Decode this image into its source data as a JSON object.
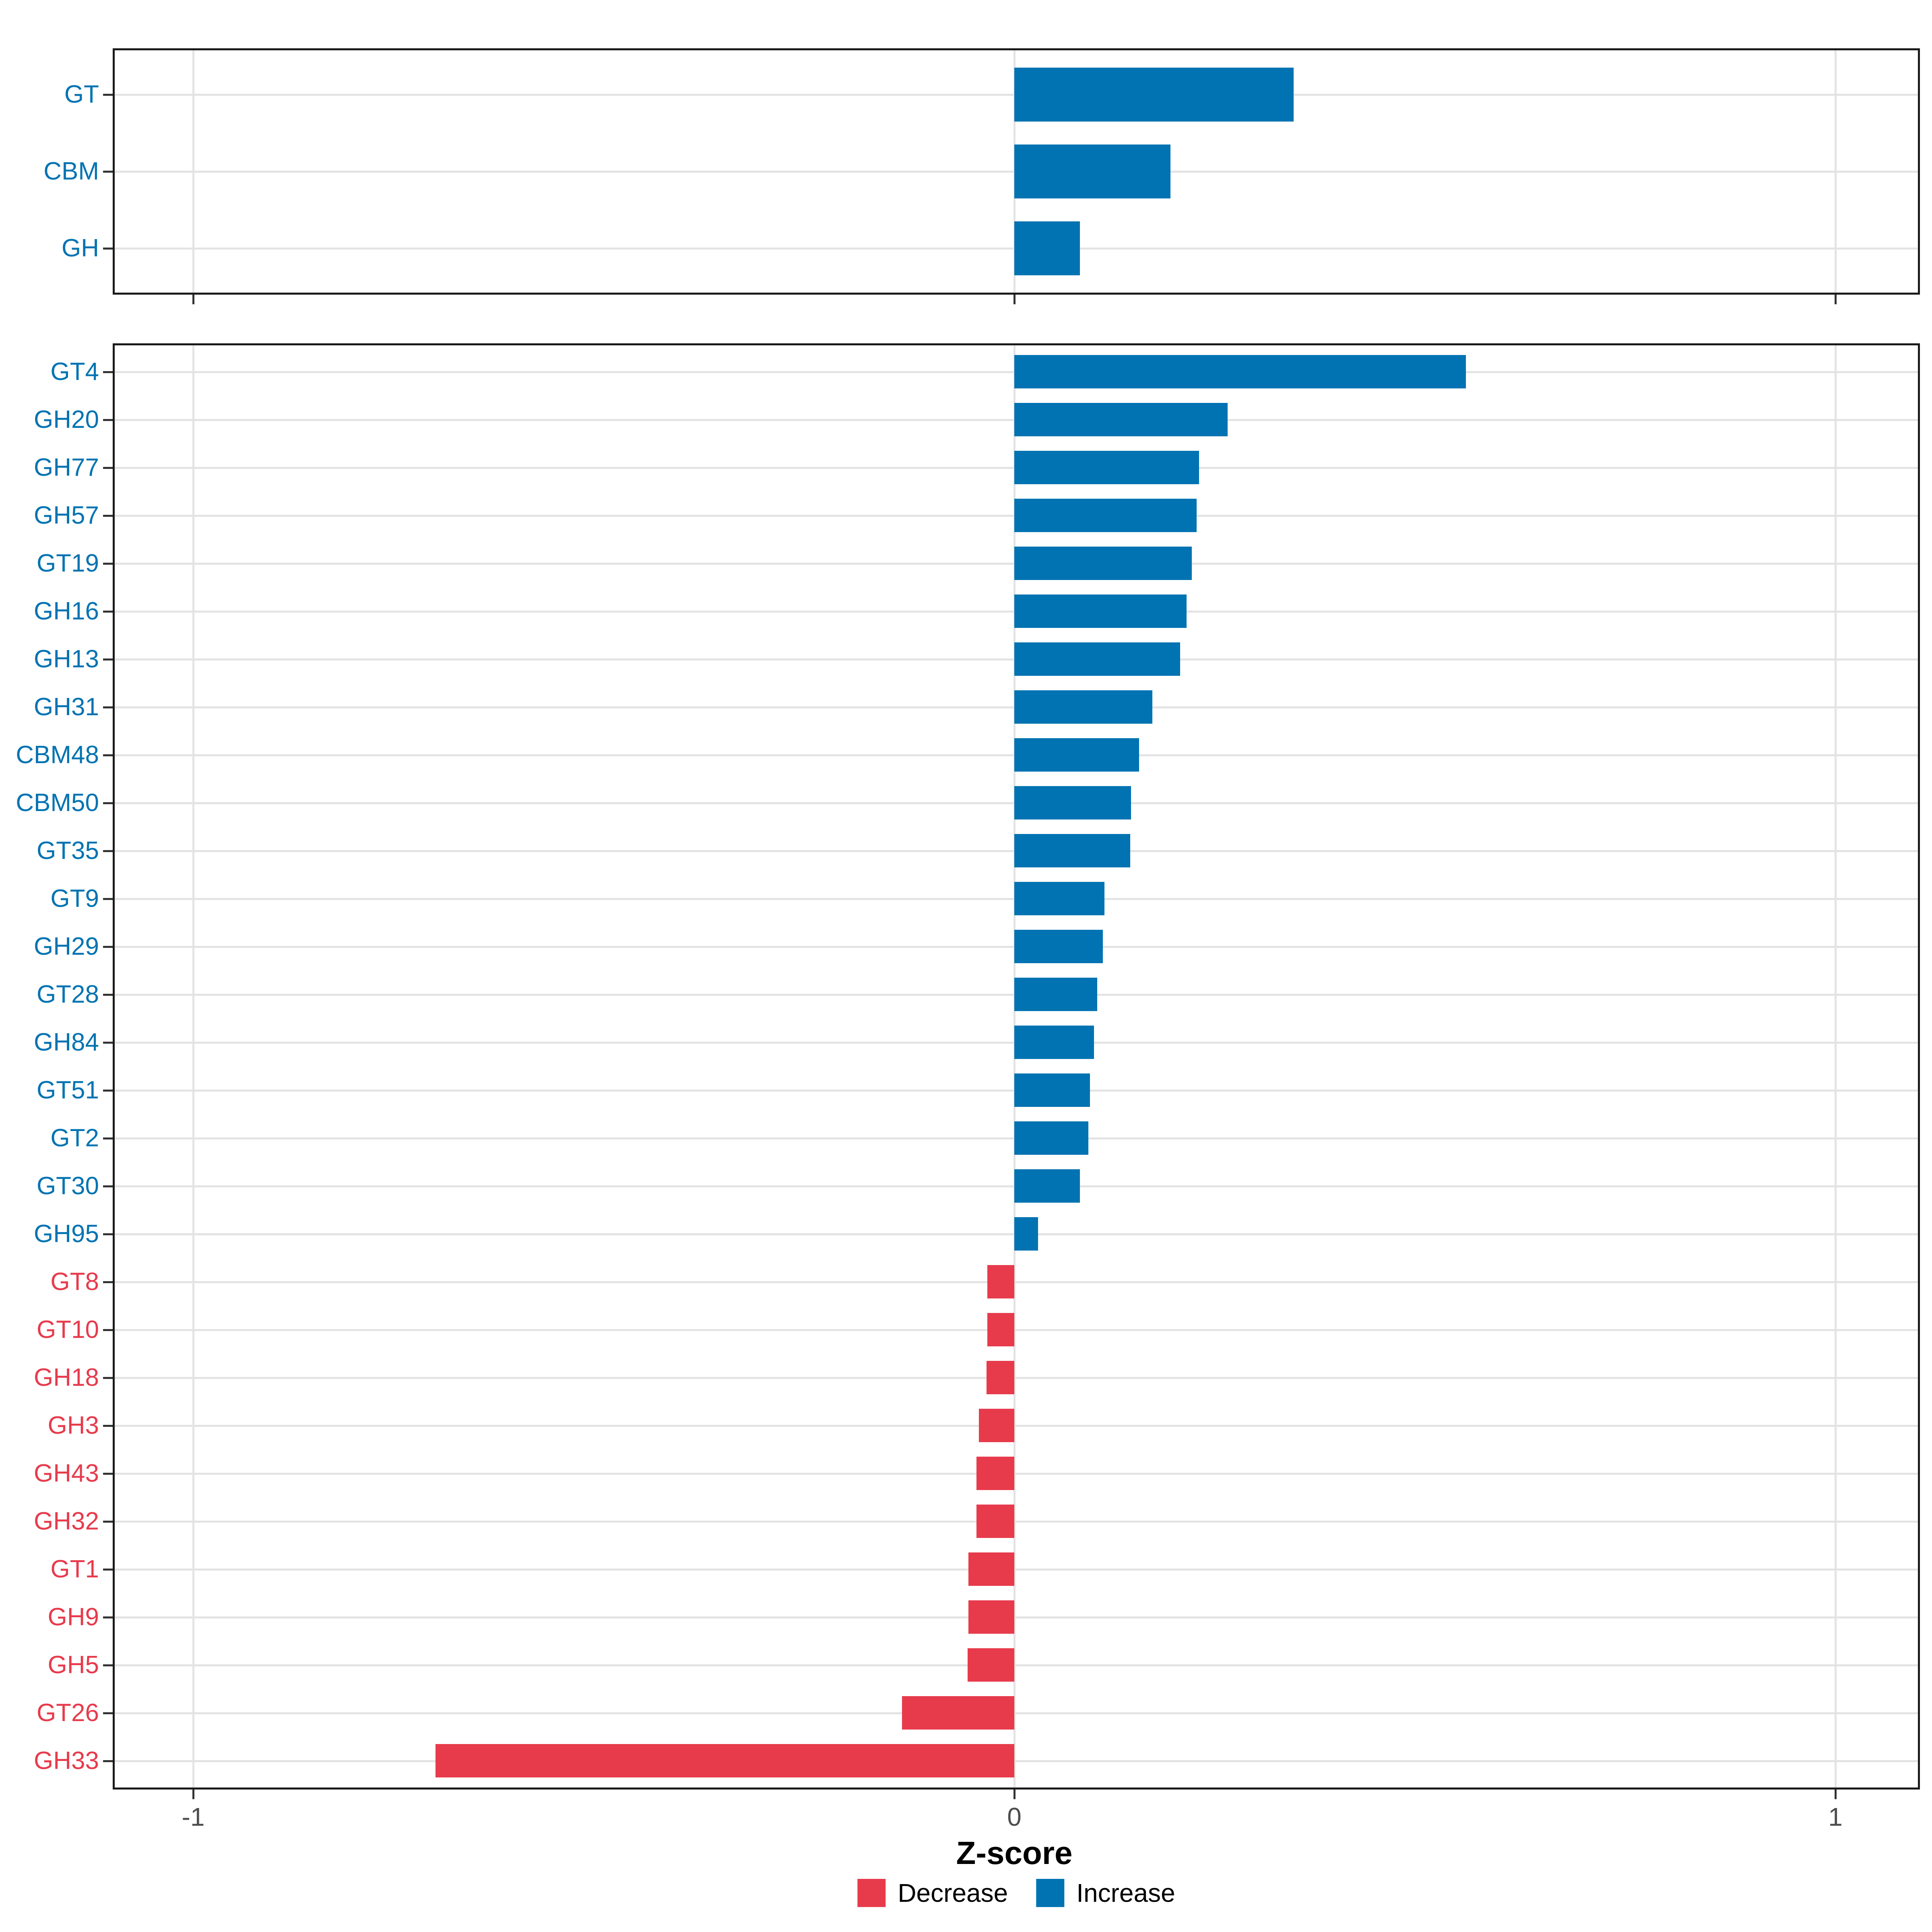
{
  "figure": {
    "xlabel": "Z-score",
    "x_ticks": [
      {
        "value": -1,
        "label": "-1"
      },
      {
        "value": 0,
        "label": "0"
      },
      {
        "value": 1,
        "label": "1"
      }
    ],
    "legend": {
      "items": [
        {
          "key": "decrease",
          "label": "Decrease",
          "color": "#E73B4C"
        },
        {
          "key": "increase",
          "label": "Increase",
          "color": "#0273B2"
        }
      ]
    },
    "colors": {
      "increase": "#0273B2",
      "decrease": "#E73B4C",
      "grid": "#E3E3E3",
      "panel_border": "#1a1a1a",
      "tick": "#333333",
      "tick_text": "#4D4D4D",
      "background": "#ffffff"
    }
  },
  "chart_data": [
    {
      "type": "bar",
      "orientation": "horizontal",
      "panel": "top",
      "title": "",
      "xlabel": "Z-score",
      "ylabel": "",
      "xlim": [
        -1.1,
        1.1
      ],
      "grid": true,
      "categories": [
        "GT",
        "CBM",
        "GH"
      ],
      "values": [
        0.34,
        0.19,
        0.08
      ],
      "directions": [
        "Increase",
        "Increase",
        "Increase"
      ]
    },
    {
      "type": "bar",
      "orientation": "horizontal",
      "panel": "bottom",
      "title": "",
      "xlabel": "Z-score",
      "ylabel": "",
      "xlim": [
        -1.1,
        1.1
      ],
      "grid": true,
      "legend_position": "bottom",
      "categories": [
        "GT4",
        "GH20",
        "GH77",
        "GH57",
        "GT19",
        "GH16",
        "GH13",
        "GH31",
        "CBM48",
        "CBM50",
        "GT35",
        "GT9",
        "GH29",
        "GT28",
        "GH84",
        "GT51",
        "GT2",
        "GT30",
        "GH95",
        "GT8",
        "GT10",
        "GH18",
        "GH3",
        "GH43",
        "GH32",
        "GT1",
        "GH9",
        "GH5",
        "GT26",
        "GH33"
      ],
      "values": [
        0.55,
        0.26,
        0.225,
        0.222,
        0.216,
        0.21,
        0.202,
        0.168,
        0.152,
        0.142,
        0.141,
        0.11,
        0.108,
        0.101,
        0.097,
        0.092,
        0.09,
        0.08,
        0.029,
        -0.033,
        -0.033,
        -0.034,
        -0.043,
        -0.046,
        -0.046,
        -0.056,
        -0.056,
        -0.057,
        -0.137,
        -0.705
      ],
      "directions": [
        "Increase",
        "Increase",
        "Increase",
        "Increase",
        "Increase",
        "Increase",
        "Increase",
        "Increase",
        "Increase",
        "Increase",
        "Increase",
        "Increase",
        "Increase",
        "Increase",
        "Increase",
        "Increase",
        "Increase",
        "Increase",
        "Increase",
        "Decrease",
        "Decrease",
        "Decrease",
        "Decrease",
        "Decrease",
        "Decrease",
        "Decrease",
        "Decrease",
        "Decrease",
        "Decrease",
        "Decrease"
      ]
    }
  ]
}
